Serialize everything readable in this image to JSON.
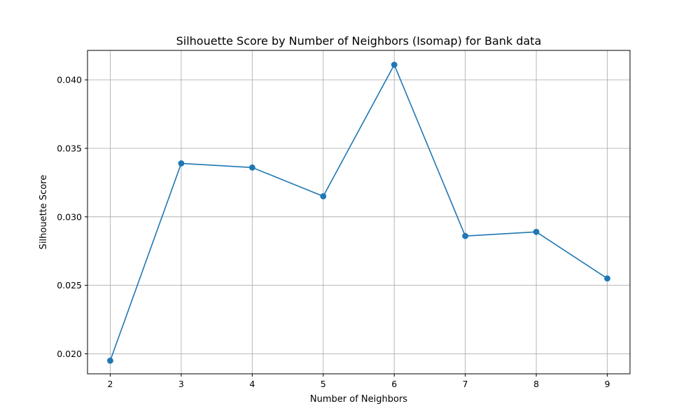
{
  "chart_data": {
    "type": "line",
    "title": "Silhouette Score by Number of Neighbors (Isomap) for Bank data",
    "xlabel": "Number of Neighbors",
    "ylabel": "Silhouette Score",
    "x": [
      2,
      3,
      4,
      5,
      6,
      7,
      8,
      9
    ],
    "series": [
      {
        "values": [
          0.0195,
          0.0339,
          0.0336,
          0.0315,
          0.0411,
          0.0286,
          0.0289,
          0.0255
        ],
        "color": "#1f77b4",
        "marker": "circle"
      }
    ],
    "xlim": [
      1.68,
      9.32
    ],
    "ylim": [
      0.01854,
      0.04215
    ],
    "xticks": [
      2,
      3,
      4,
      5,
      6,
      7,
      8,
      9
    ],
    "xtick_labels": [
      "2",
      "3",
      "4",
      "5",
      "6",
      "7",
      "8",
      "9"
    ],
    "yticks": [
      0.02,
      0.025,
      0.03,
      0.035,
      0.04
    ],
    "ytick_labels": [
      "0.020",
      "0.025",
      "0.030",
      "0.035",
      "0.040"
    ],
    "grid": true,
    "grid_color": "#b0b0b0",
    "legend": "none"
  }
}
